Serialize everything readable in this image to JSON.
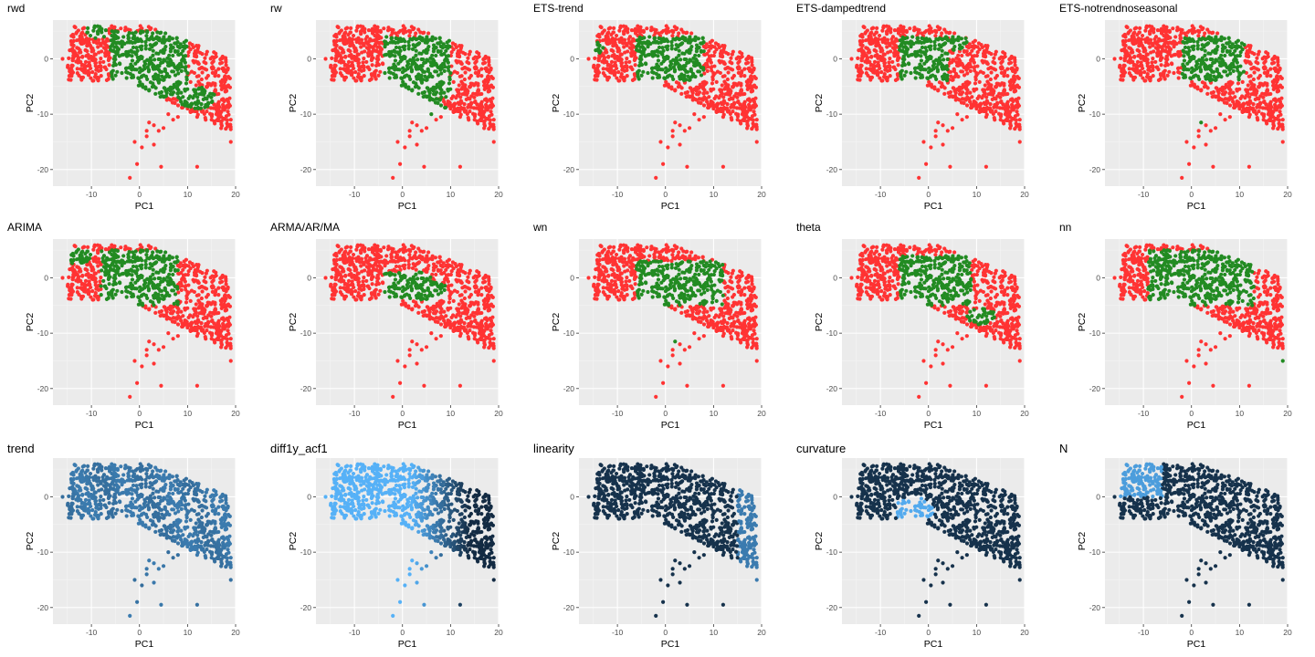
{
  "chart_data": {
    "type": "scatter",
    "xlabel": "PC1",
    "ylabel": "PC2",
    "xlim": [
      -18,
      20
    ],
    "ylim": [
      -23,
      7
    ],
    "xticks": [
      -10,
      0,
      10,
      20
    ],
    "yticks": [
      0,
      -10,
      -20
    ],
    "xtick_labels": [
      "-10",
      "0",
      "10",
      "20"
    ],
    "ytick_labels": [
      "0",
      "-10",
      "-20"
    ],
    "grid": true,
    "colors": {
      "highlight": "#228b22",
      "background_points": "#ff3333",
      "gradient_low": "#56b1f7",
      "gradient_high": "#132b43",
      "panel_background": "#ebebeb"
    },
    "panels": [
      {
        "title": "rwd",
        "kind": "binary",
        "green_region": [
          -6,
          10,
          -7,
          5
        ],
        "green_extra": [
          [
            -9,
            5,
            2.5,
            1.5
          ],
          [
            12,
            -7,
            4,
            2
          ]
        ]
      },
      {
        "title": "rw",
        "kind": "binary",
        "green_region": [
          -4,
          10,
          -7,
          4
        ],
        "green_extra": [
          [
            6,
            -9,
            3,
            2
          ]
        ]
      },
      {
        "title": "ETS-trend",
        "kind": "binary",
        "green_region": [
          -6,
          8,
          -4,
          4
        ],
        "green_extra": [
          [
            -14,
            2,
            1,
            1
          ]
        ]
      },
      {
        "title": "ETS-dampedtrend",
        "kind": "binary",
        "green_region": [
          -6,
          4,
          -4,
          4
        ],
        "green_extra": [
          [
            6,
            3,
            2,
            1.5
          ]
        ]
      },
      {
        "title": "ETS-notrendnoseasonal",
        "kind": "binary",
        "green_region": [
          -2,
          11,
          -4,
          4
        ],
        "green_extra": [
          [
            2,
            -9,
            1.5,
            3
          ]
        ]
      },
      {
        "title": "ARIMA",
        "kind": "binary",
        "green_region": [
          -8,
          8,
          -5,
          5
        ],
        "green_extra": [
          [
            -13,
            4,
            3,
            1.5
          ]
        ]
      },
      {
        "title": "ARMA/AR/MA",
        "kind": "binary",
        "green_region": [
          -4,
          6,
          -4,
          1
        ],
        "green_extra": [
          [
            7,
            -2,
            2,
            1.5
          ]
        ]
      },
      {
        "title": "wn",
        "kind": "binary",
        "green_region": [
          -6,
          12,
          -5,
          3
        ],
        "green_extra": [
          [
            2,
            -11,
            1,
            1
          ]
        ]
      },
      {
        "title": "theta",
        "kind": "binary",
        "green_region": [
          -6,
          9,
          -5,
          4
        ],
        "green_extra": [
          [
            11,
            -7,
            3,
            1.5
          ]
        ]
      },
      {
        "title": "nn",
        "kind": "binary",
        "green_region": [
          -9,
          13,
          -5,
          5
        ],
        "green_extra": [
          [
            19,
            -15,
            0.5,
            0.5
          ]
        ]
      },
      {
        "title": "trend",
        "kind": "gradient",
        "gradient": "uniform_mid"
      },
      {
        "title": "diff1y_acf1",
        "kind": "gradient",
        "gradient": "light_left_dark_right"
      },
      {
        "title": "linearity",
        "kind": "gradient",
        "gradient": "mostly_dark_light_right"
      },
      {
        "title": "curvature",
        "kind": "gradient",
        "gradient": "light_pocket_center"
      },
      {
        "title": "N",
        "kind": "gradient",
        "gradient": "light_upper_left"
      }
    ]
  }
}
